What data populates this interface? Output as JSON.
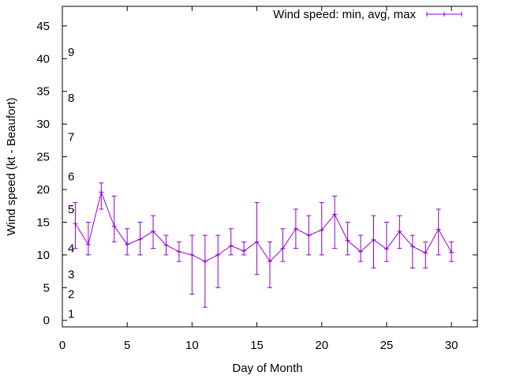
{
  "chart_data": {
    "type": "line",
    "title": "",
    "xlabel": "Day of Month",
    "ylabel": "Wind speed (kt - Beaufort)",
    "xlim": [
      0,
      32
    ],
    "ylim": [
      -1,
      48
    ],
    "x_ticks": [
      0,
      5,
      10,
      15,
      20,
      25,
      30
    ],
    "y_ticks": [
      0,
      5,
      10,
      15,
      20,
      25,
      30,
      35,
      40,
      45
    ],
    "grid": false,
    "legend": "top-right",
    "beaufort_labels": [
      {
        "label": "1",
        "y": 1
      },
      {
        "label": "2",
        "y": 4
      },
      {
        "label": "3",
        "y": 7
      },
      {
        "label": "4",
        "y": 11
      },
      {
        "label": "5",
        "y": 17
      },
      {
        "label": "6",
        "y": 22
      },
      {
        "label": "7",
        "y": 28
      },
      {
        "label": "8",
        "y": 34
      },
      {
        "label": "9",
        "y": 41
      }
    ],
    "series": [
      {
        "name": "Wind speed: min, avg, max",
        "color": "#9400d3",
        "x": [
          1,
          2,
          3,
          4,
          5,
          6,
          7,
          8,
          9,
          10,
          11,
          12,
          13,
          14,
          15,
          16,
          17,
          18,
          19,
          20,
          21,
          22,
          23,
          24,
          25,
          26,
          27,
          28,
          29,
          30
        ],
        "avg": [
          14.8,
          11.6,
          19.6,
          14.4,
          11.6,
          12.4,
          13.6,
          11.5,
          10.5,
          10.0,
          9.0,
          10.0,
          11.4,
          10.6,
          12.0,
          9.0,
          11.0,
          14.0,
          13.0,
          13.8,
          16.2,
          12.2,
          10.5,
          12.3,
          10.9,
          13.6,
          11.3,
          10.3,
          13.9,
          10.4
        ],
        "min": [
          11,
          10,
          17,
          12,
          10,
          10,
          11,
          10,
          9,
          4,
          2,
          5,
          10,
          10,
          7,
          5,
          9,
          11,
          10,
          10,
          11,
          10,
          9,
          8,
          9,
          11,
          8,
          8,
          10,
          9
        ],
        "max": [
          18,
          15,
          21,
          19,
          14,
          15,
          16,
          13,
          12,
          13,
          13,
          13,
          14,
          12,
          18,
          12,
          14,
          17,
          16,
          18,
          19,
          15,
          13,
          16,
          15,
          16,
          13,
          12,
          17,
          12
        ]
      }
    ]
  }
}
